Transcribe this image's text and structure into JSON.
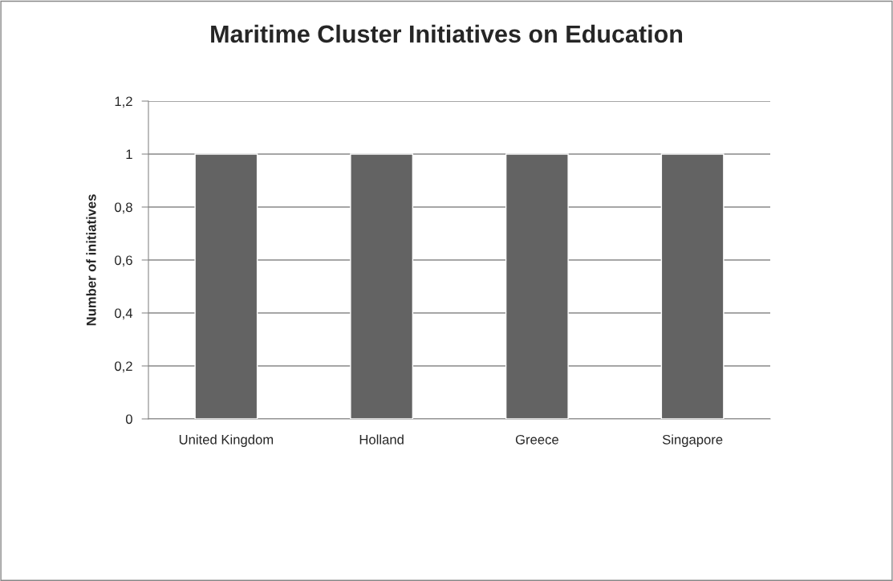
{
  "chart_data": {
    "type": "bar",
    "title": "Maritime Cluster Initiatives on Education",
    "ylabel": "Number of initiatives",
    "categories": [
      "United Kingdom",
      "Holland",
      "Greece",
      "Singapore"
    ],
    "values": [
      1,
      1,
      1,
      1
    ],
    "color": "#636363",
    "ylim": [
      0,
      1.2
    ],
    "yticks": [
      0,
      {
        "value": 0.2,
        "label": "0,2"
      },
      {
        "value": 0.4,
        "label": "0,4"
      },
      {
        "value": 0.6,
        "label": "0,6"
      },
      {
        "value": 0.8,
        "label": "0,8"
      },
      1,
      {
        "value": 1.2,
        "label": "1,2"
      }
    ],
    "grid": "y",
    "legend": false
  }
}
